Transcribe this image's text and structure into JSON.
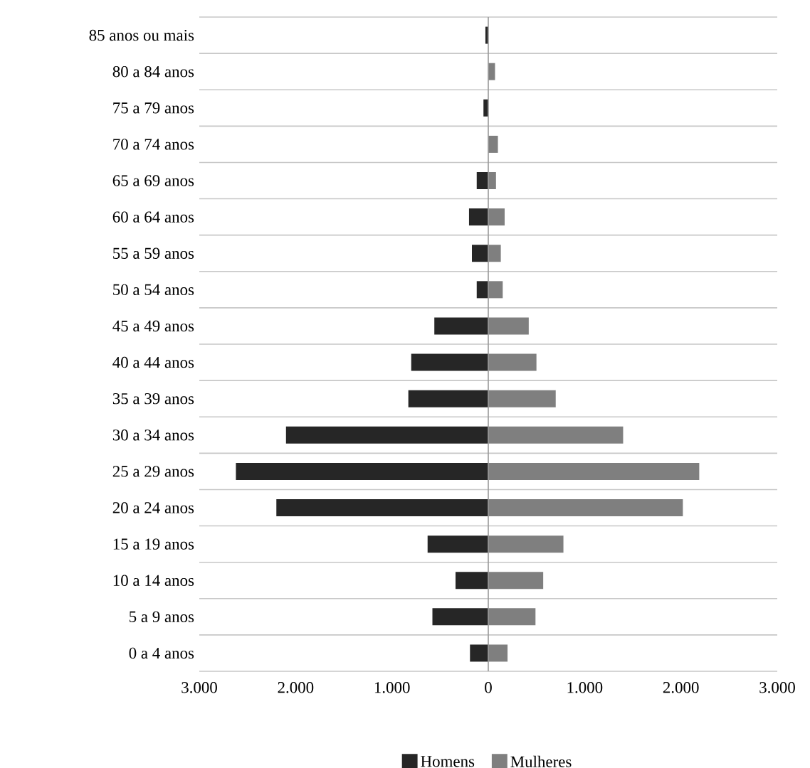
{
  "chart_data": {
    "type": "bar",
    "orientation": "horizontal",
    "stacked": true,
    "categories": [
      "85 anos ou mais",
      "80 a 84 anos",
      "75 a 79 anos",
      "70 a 74 anos",
      "65 a 69 anos",
      "60 a 64 anos",
      "55 a 59 anos",
      "50 a 54 anos",
      "45 a 49 anos",
      "40 a 44 anos",
      "35 a 39 anos",
      "30 a 34 anos",
      "25 a 29 anos",
      "20 a 24 anos",
      "15 a 19 anos",
      "10 a 14 anos",
      "5 a 9 anos",
      "0 a 4 anos"
    ],
    "series": [
      {
        "name": "Homens",
        "color": "#262626",
        "values": [
          -30,
          0,
          -50,
          0,
          -120,
          -200,
          -170,
          -120,
          -560,
          -800,
          -830,
          -2100,
          -2620,
          -2200,
          -630,
          -340,
          -580,
          -190
        ]
      },
      {
        "name": "Mulheres",
        "color": "#7f7f7f",
        "values": [
          0,
          70,
          0,
          100,
          80,
          170,
          130,
          150,
          420,
          500,
          700,
          1400,
          2190,
          2020,
          780,
          570,
          490,
          200
        ]
      }
    ],
    "xlim": [
      -3000,
      3000
    ],
    "xticks": [
      {
        "value": -3000,
        "label": "3.000"
      },
      {
        "value": -2000,
        "label": "2.000"
      },
      {
        "value": -1000,
        "label": "1.000"
      },
      0,
      {
        "value": 1000,
        "label": "1.000"
      },
      {
        "value": 2000,
        "label": "2.000"
      },
      {
        "value": 3000,
        "label": "3.000"
      }
    ],
    "grid": "y",
    "legend": "bottom"
  }
}
